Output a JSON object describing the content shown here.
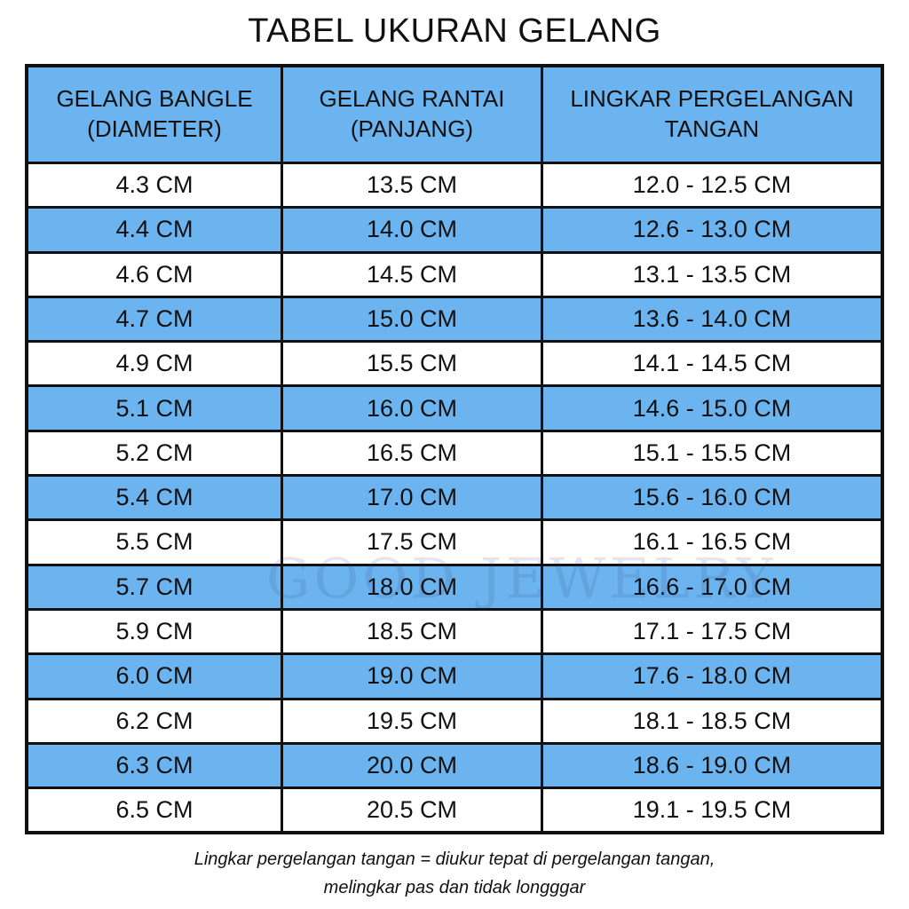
{
  "title": "TABEL UKURAN GELANG",
  "watermark": "GOOD JEWELRY",
  "colors": {
    "header_bg": "#6cb4ef",
    "stripe_bg": "#6cb4ef",
    "border": "#111111"
  },
  "table": {
    "headers": [
      "GELANG BANGLE\n(DIAMETER)",
      "GELANG RANTAI\n(PANJANG)",
      "LINGKAR PERGELANGAN\nTANGAN"
    ],
    "rows": [
      [
        "4.3 CM",
        "13.5 CM",
        "12.0 - 12.5 CM"
      ],
      [
        "4.4 CM",
        "14.0 CM",
        "12.6 - 13.0 CM"
      ],
      [
        "4.6 CM",
        "14.5 CM",
        "13.1 - 13.5 CM"
      ],
      [
        "4.7 CM",
        "15.0 CM",
        "13.6 - 14.0 CM"
      ],
      [
        "4.9 CM",
        "15.5 CM",
        "14.1 - 14.5 CM"
      ],
      [
        "5.1 CM",
        "16.0 CM",
        "14.6 - 15.0 CM"
      ],
      [
        "5.2 CM",
        "16.5 CM",
        "15.1 - 15.5 CM"
      ],
      [
        "5.4 CM",
        "17.0 CM",
        "15.6 - 16.0 CM"
      ],
      [
        "5.5 CM",
        "17.5 CM",
        "16.1 - 16.5 CM"
      ],
      [
        "5.7 CM",
        "18.0 CM",
        "16.6 - 17.0 CM"
      ],
      [
        "5.9 CM",
        "18.5 CM",
        "17.1 - 17.5 CM"
      ],
      [
        "6.0 CM",
        "19.0 CM",
        "17.6 - 18.0 CM"
      ],
      [
        "6.2 CM",
        "19.5 CM",
        "18.1 - 18.5 CM"
      ],
      [
        "6.3 CM",
        "20.0 CM",
        "18.6 - 19.0 CM"
      ],
      [
        "6.5 CM",
        "20.5 CM",
        "19.1 - 19.5 CM"
      ]
    ]
  },
  "note": {
    "line1": "Lingkar pergelangan tangan = diukur tepat di pergelangan tangan,",
    "line2": "melingkar pas dan tidak longggar"
  }
}
